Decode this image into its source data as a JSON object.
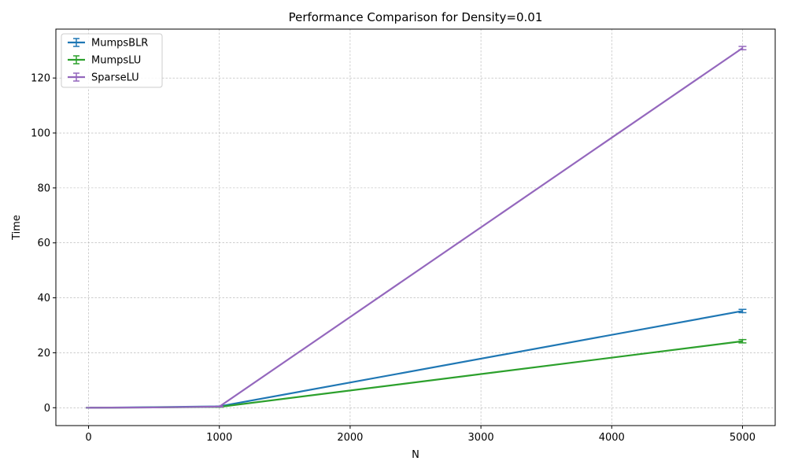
{
  "chart_data": {
    "type": "line",
    "title": "Performance Comparison for Density=0.01",
    "xlabel": "N",
    "ylabel": "Time",
    "x": [
      10,
      500,
      1000,
      5000
    ],
    "xlim": [
      -250,
      5250
    ],
    "ylim": [
      -6.5,
      137.8
    ],
    "xticks": [
      0,
      1000,
      2000,
      3000,
      4000,
      5000
    ],
    "yticks": [
      0,
      20,
      40,
      60,
      80,
      100,
      120
    ],
    "grid": true,
    "legend_position": "top-left",
    "series": [
      {
        "name": "MumpsBLR",
        "color": "#1f77b4",
        "values": [
          0.0,
          0.2,
          0.5,
          35.2
        ],
        "errors": [
          0.05,
          0.05,
          0.1,
          0.6
        ]
      },
      {
        "name": "MumpsLU",
        "color": "#2ca02c",
        "values": [
          0.0,
          0.1,
          0.3,
          24.2
        ],
        "errors": [
          0.05,
          0.05,
          0.1,
          0.6
        ]
      },
      {
        "name": "SparseLU",
        "color": "#9467bd",
        "values": [
          0.0,
          0.1,
          0.4,
          130.9
        ],
        "errors": [
          0.05,
          0.05,
          0.1,
          0.6
        ]
      }
    ]
  }
}
